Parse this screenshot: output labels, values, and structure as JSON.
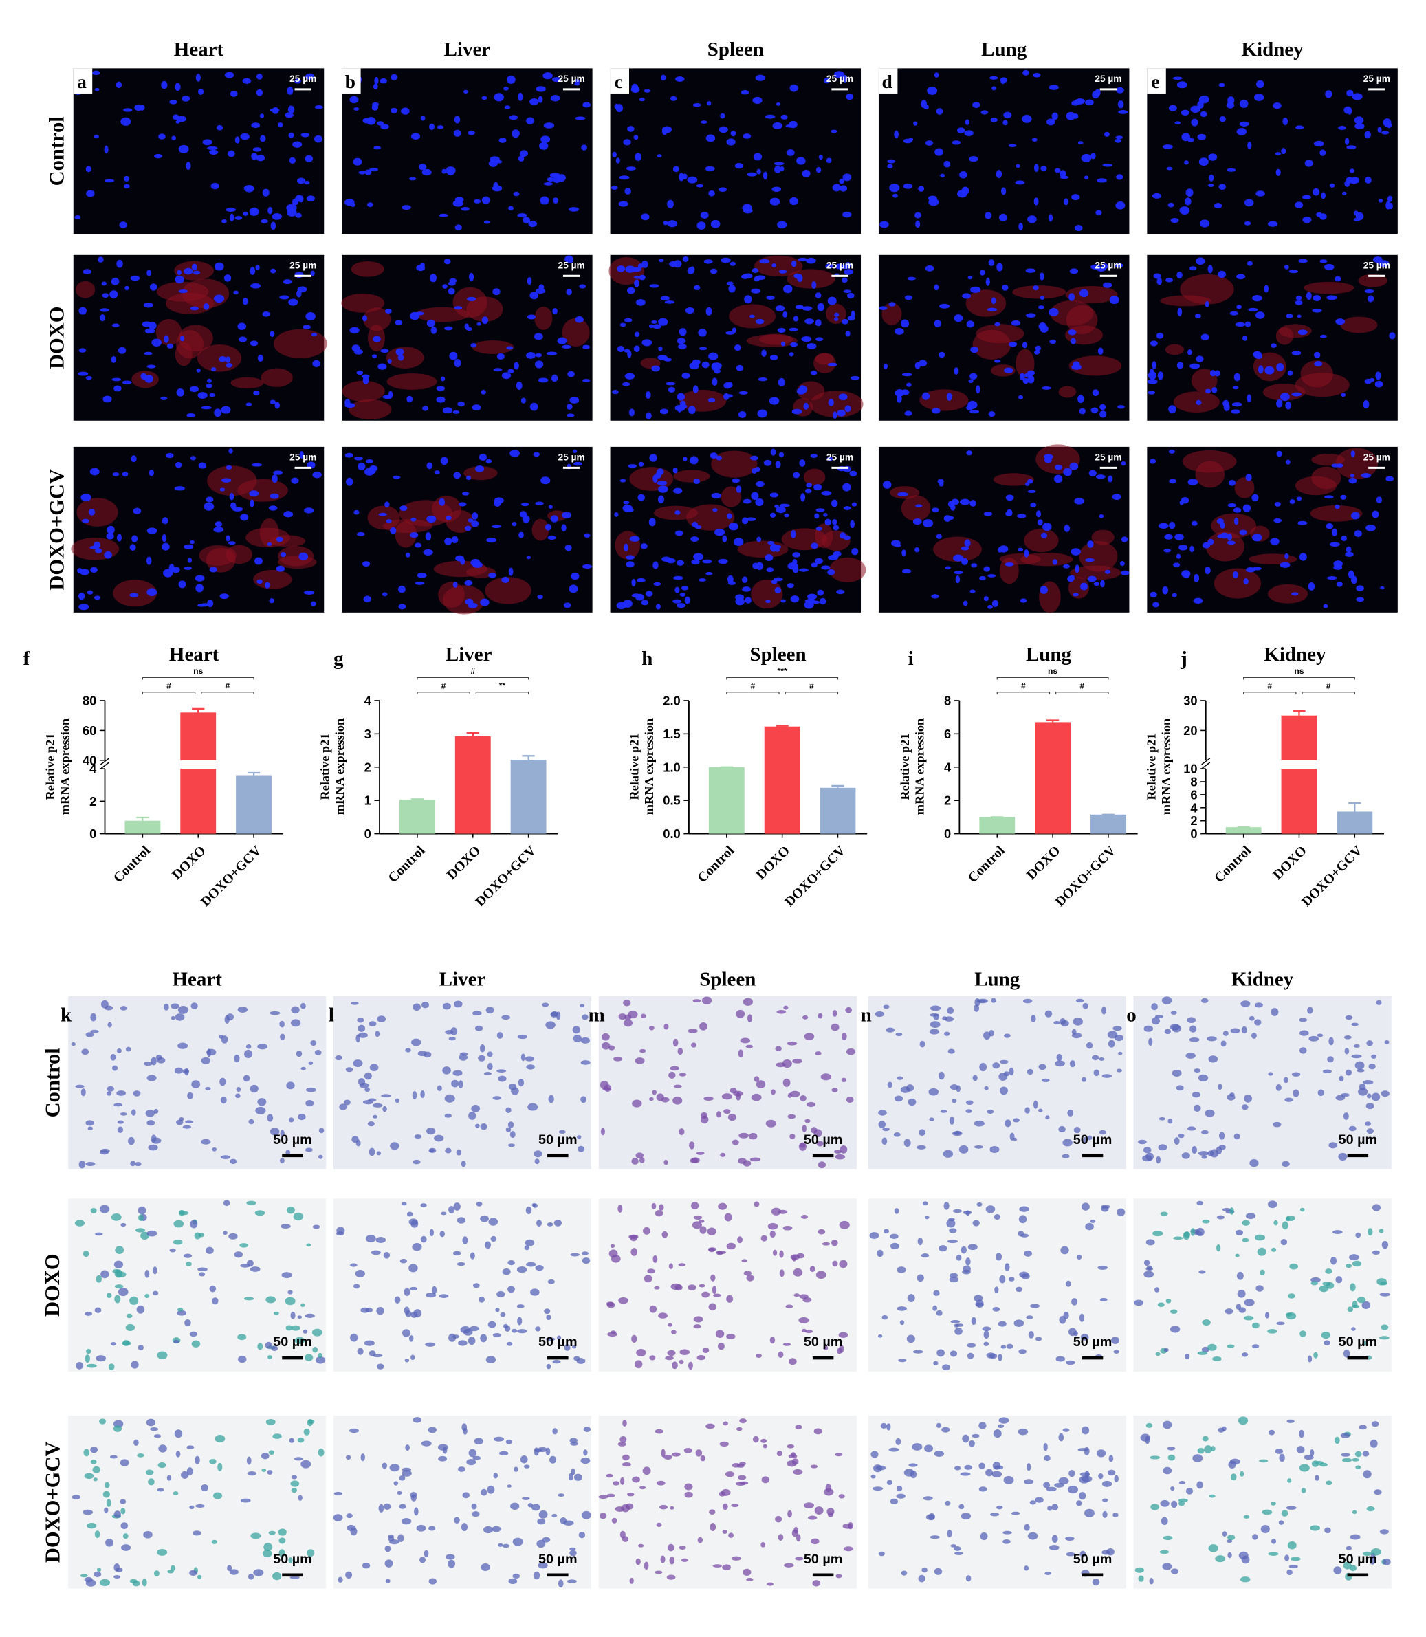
{
  "fluorescence_panel": {
    "columns": [
      "Heart",
      "Liver",
      "Spleen",
      "Lung",
      "Kidney"
    ],
    "rows": [
      "Control",
      "DOXO",
      "DOXO+GCV"
    ],
    "letters": [
      "a",
      "b",
      "c",
      "d",
      "e"
    ],
    "scale_bar": "25 µm"
  },
  "chart_data": [
    {
      "type": "bar",
      "letter": "f",
      "title": "Heart",
      "ylabel": [
        "Relative p21",
        "mRNA expression"
      ],
      "categories": [
        "Control",
        "DOXO",
        "DOXO+GCV"
      ],
      "values": [
        0.8,
        72,
        3.6
      ],
      "errors": [
        0.2,
        2.5,
        0.15
      ],
      "colors": [
        "#a9dcb1",
        "#f7444a",
        "#96aed2"
      ],
      "segments": [
        {
          "ylim": [
            0,
            4
          ],
          "yticks": [
            0,
            2,
            4
          ]
        },
        {
          "ylim": [
            40,
            80
          ],
          "yticks": [
            40,
            60,
            80
          ]
        }
      ],
      "annotations": [
        "ns",
        "#",
        "#"
      ]
    },
    {
      "type": "bar",
      "letter": "g",
      "title": "Liver",
      "ylabel": [
        "Relative p21",
        "mRNA expression"
      ],
      "categories": [
        "Control",
        "DOXO",
        "DOXO+GCV"
      ],
      "values": [
        1.02,
        2.93,
        2.22
      ],
      "errors": [
        0.02,
        0.1,
        0.12
      ],
      "colors": [
        "#a9dcb1",
        "#f7444a",
        "#96aed2"
      ],
      "ylim": [
        0,
        4
      ],
      "yticks": [
        0,
        1,
        2,
        3,
        4
      ],
      "annotations": [
        "#",
        "#",
        "**"
      ]
    },
    {
      "type": "bar",
      "letter": "h",
      "title": "Spleen",
      "ylabel": [
        "Relative p21",
        "mRNA expression"
      ],
      "categories": [
        "Control",
        "DOXO",
        "DOXO+GCV"
      ],
      "values": [
        1.0,
        1.61,
        0.69
      ],
      "errors": [
        0.0,
        0.01,
        0.03
      ],
      "colors": [
        "#a9dcb1",
        "#f7444a",
        "#96aed2"
      ],
      "ylim": [
        0,
        2
      ],
      "yticks": [
        {
          "value": 0,
          "label": "0.0"
        },
        0.5,
        {
          "value": 1,
          "label": "1.0"
        },
        1.5,
        {
          "value": 2,
          "label": "2.0"
        }
      ],
      "annotations": [
        "***",
        "#",
        "#"
      ]
    },
    {
      "type": "bar",
      "letter": "i",
      "title": "Lung",
      "ylabel": [
        "Relative p21",
        "mRNA expression"
      ],
      "categories": [
        "Control",
        "DOXO",
        "DOXO+GCV"
      ],
      "values": [
        1.0,
        6.7,
        1.15
      ],
      "errors": [
        0.0,
        0.12,
        0.0
      ],
      "colors": [
        "#a9dcb1",
        "#f7444a",
        "#96aed2"
      ],
      "ylim": [
        0,
        8
      ],
      "yticks": [
        0,
        2,
        4,
        6,
        8
      ],
      "annotations": [
        "ns",
        "#",
        "#"
      ]
    },
    {
      "type": "bar",
      "letter": "j",
      "title": "Kidney",
      "ylabel": [
        "Relative p21",
        "mRNA expression"
      ],
      "categories": [
        "Control",
        "DOXO",
        "DOXO+GCV"
      ],
      "values": [
        1.0,
        25,
        3.4
      ],
      "errors": [
        0.0,
        1.5,
        1.3
      ],
      "colors": [
        "#a9dcb1",
        "#f7444a",
        "#96aed2"
      ],
      "segments": [
        {
          "ylim": [
            0,
            10
          ],
          "yticks": [
            0,
            2,
            4,
            6,
            8,
            10
          ]
        },
        {
          "ylim": [
            10,
            30
          ],
          "yticks": [
            20,
            30
          ]
        }
      ],
      "annotations": [
        "ns",
        "#",
        "#"
      ]
    }
  ],
  "staining_panel": {
    "columns": [
      "Heart",
      "Liver",
      "Spleen",
      "Lung",
      "Kidney"
    ],
    "rows": [
      "Control",
      "DOXO",
      "DOXO+GCV"
    ],
    "letters": [
      "k",
      "l",
      "m",
      "n",
      "o"
    ],
    "scale_bar": "50 µm"
  }
}
